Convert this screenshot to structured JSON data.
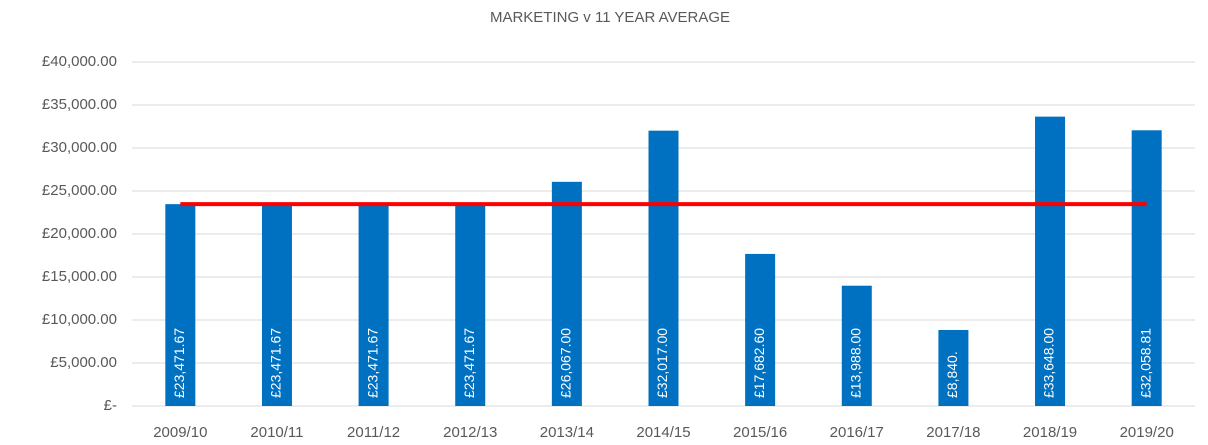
{
  "chart_data": {
    "type": "bar",
    "title": "MARKETING v 11 YEAR AVERAGE",
    "categories": [
      "2009/10",
      "2010/11",
      "2011/12",
      "2012/13",
      "2013/14",
      "2014/15",
      "2015/16",
      "2016/17",
      "2017/18",
      "2018/19",
      "2019/20"
    ],
    "series": [
      {
        "type": "bar",
        "color": "#0070c0",
        "values": [
          23471.67,
          23471.67,
          23471.67,
          23471.67,
          26067.0,
          32017.0,
          17682.6,
          13988.0,
          8840,
          33648.0,
          32058.81
        ],
        "value_labels": [
          "£23,471.67",
          "£23,471.67",
          "£23,471.67",
          "£23,471.67",
          "£26,067.00",
          "£32,017.00",
          "£17,682.60",
          "£13,988.00",
          "£8,840.",
          "£33,648.00",
          "£32,058.81"
        ]
      },
      {
        "type": "line",
        "color": "#ff0000",
        "values": [
          23471.64,
          23471.64,
          23471.64,
          23471.64,
          23471.64,
          23471.64,
          23471.64,
          23471.64,
          23471.64,
          23471.64,
          23471.64
        ]
      }
    ],
    "ylim": [
      0,
      40000
    ],
    "yticks": [
      {
        "value": 0,
        "label": "£-"
      },
      {
        "value": 5000,
        "label": "£5,000.00"
      },
      {
        "value": 10000,
        "label": "£10,000.00"
      },
      {
        "value": 15000,
        "label": "£15,000.00"
      },
      {
        "value": 20000,
        "label": "£20,000.00"
      },
      {
        "value": 25000,
        "label": "£25,000.00"
      },
      {
        "value": 30000,
        "label": "£30,000.00"
      },
      {
        "value": 35000,
        "label": "£35,000.00"
      },
      {
        "value": 40000,
        "label": "£40,000.00"
      }
    ],
    "grid": true
  }
}
